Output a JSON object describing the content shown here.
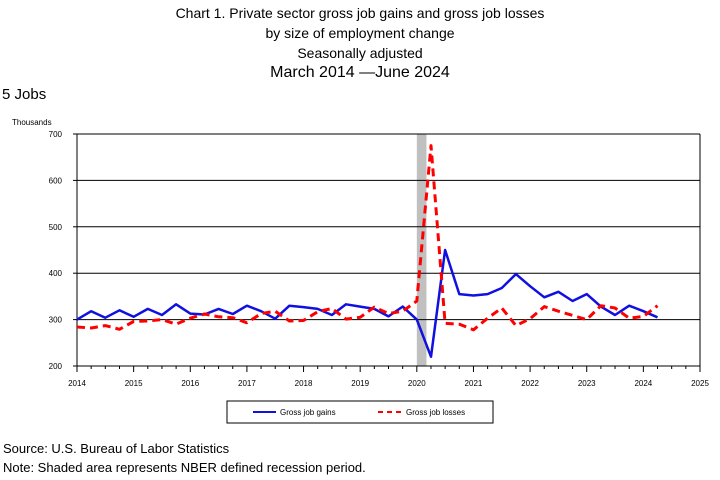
{
  "title": {
    "line1": "Chart 1. Private sector gross job gains and gross job losses",
    "line2": "by size of employment change",
    "line3": "Seasonally adjusted",
    "line4": "March 2014 —June 2024"
  },
  "size_label": "5 Jobs",
  "footer": {
    "source": "Source: U.S. Bureau of Labor Statistics",
    "note": "Note: Shaded area represents NBER defined recession period."
  },
  "chart_data": {
    "type": "line",
    "ylabel": "Thousands",
    "ylim": [
      200,
      700
    ],
    "yticks": [
      200,
      300,
      400,
      500,
      600,
      700
    ],
    "xlim": [
      2014,
      2025
    ],
    "xticks": [
      2014,
      2015,
      2016,
      2017,
      2018,
      2019,
      2020,
      2021,
      2022,
      2023,
      2024,
      2025
    ],
    "grid": true,
    "legend_position": "bottom",
    "recession": [
      2020.0,
      2020.17
    ],
    "x": [
      2014.0,
      2014.25,
      2014.5,
      2014.75,
      2015.0,
      2015.25,
      2015.5,
      2015.75,
      2016.0,
      2016.25,
      2016.5,
      2016.75,
      2017.0,
      2017.25,
      2017.5,
      2017.75,
      2018.0,
      2018.25,
      2018.5,
      2018.75,
      2019.0,
      2019.25,
      2019.5,
      2019.75,
      2020.0,
      2020.25,
      2020.5,
      2020.75,
      2021.0,
      2021.25,
      2021.5,
      2021.75,
      2022.0,
      2022.25,
      2022.5,
      2022.75,
      2023.0,
      2023.25,
      2023.5,
      2023.75,
      2024.0,
      2024.25
    ],
    "series": [
      {
        "name": "Gross job gains",
        "color": "#1010e0",
        "dash": "solid",
        "values": [
          300,
          318,
          304,
          320,
          306,
          323,
          310,
          333,
          313,
          311,
          323,
          312,
          330,
          318,
          302,
          330,
          327,
          323,
          310,
          333,
          328,
          323,
          307,
          328,
          300,
          220,
          450,
          355,
          352,
          355,
          368,
          398,
          372,
          348,
          360,
          340,
          355,
          328,
          310,
          330,
          318,
          305
        ]
      },
      {
        "name": "Gross job losses",
        "color": "#ff0000",
        "dash": "dashed",
        "values": [
          284,
          282,
          287,
          279,
          296,
          297,
          300,
          290,
          303,
          312,
          306,
          304,
          293,
          313,
          318,
          297,
          298,
          317,
          324,
          301,
          305,
          327,
          313,
          318,
          340,
          675,
          292,
          290,
          278,
          303,
          325,
          287,
          302,
          328,
          318,
          309,
          300,
          330,
          325,
          303,
          307,
          330
        ]
      }
    ]
  }
}
